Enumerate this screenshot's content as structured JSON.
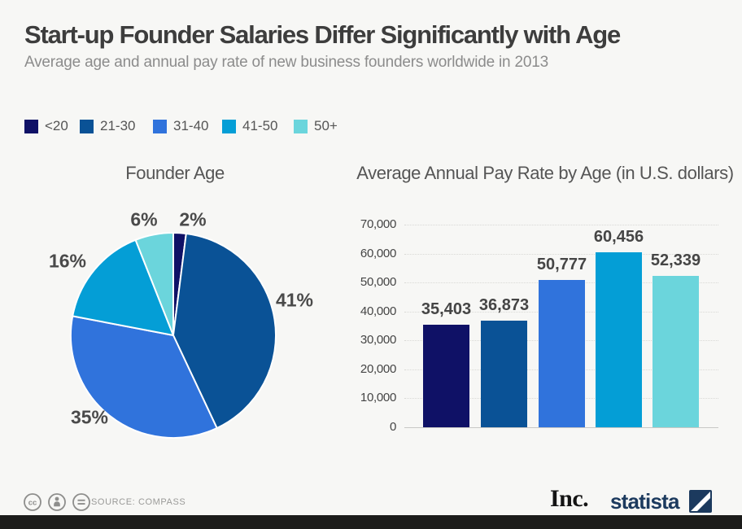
{
  "header": {
    "title": "Start-up Founder Salaries Differ Significantly with Age",
    "subtitle": "Average age and annual pay rate of new business founders worldwide in 2013"
  },
  "legend": {
    "items": [
      {
        "label": "<20",
        "color": "#0f1166"
      },
      {
        "label": "21-30",
        "color": "#0a5296"
      },
      {
        "label": "31-40",
        "color": "#3073dc"
      },
      {
        "label": "41-50",
        "color": "#049ed6"
      },
      {
        "label": "50+",
        "color": "#6bd5dc"
      }
    ]
  },
  "chart_data": [
    {
      "type": "pie",
      "title": "Founder Age",
      "categories": [
        "<20",
        "21-30",
        "31-40",
        "41-50",
        "50+"
      ],
      "values": [
        2,
        41,
        35,
        16,
        6
      ],
      "value_labels": [
        "2%",
        "41%",
        "35%",
        "16%",
        "6%"
      ],
      "colors": [
        "#0f1166",
        "#0a5296",
        "#3073dc",
        "#049ed6",
        "#6bd5dc"
      ],
      "unit": "percent",
      "start_angle_deg": 0,
      "direction": "clockwise",
      "slice_border_color": "#ffffff"
    },
    {
      "type": "bar",
      "title": "Average Annual Pay Rate by Age (in U.S. dollars)",
      "categories": [
        "<20",
        "21-30",
        "31-40",
        "41-50",
        "50+"
      ],
      "values": [
        35403,
        36873,
        50777,
        60456,
        52339
      ],
      "value_labels": [
        "35,403",
        "36,873",
        "50,777",
        "60,456",
        "52,339"
      ],
      "colors": [
        "#0f1166",
        "#0a5296",
        "#3073dc",
        "#049ed6",
        "#6bd5dc"
      ],
      "ylim": [
        0,
        70000
      ],
      "yticks": [
        70000,
        60000,
        50000,
        40000,
        30000,
        20000,
        10000,
        0
      ],
      "ytick_labels": [
        "70,000",
        "60,000",
        "50,000",
        "40,000",
        "30,000",
        "20,000",
        "10,000",
        "0"
      ],
      "grid": "horizontal",
      "legend_position": "top-left-shared"
    }
  ],
  "footer": {
    "source": "SOURCE: COMPASS",
    "license_badges": [
      "cc",
      "attribution",
      "equals"
    ]
  },
  "branding": {
    "inc": "Inc.",
    "statista": "statista"
  }
}
